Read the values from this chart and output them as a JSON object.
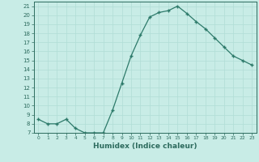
{
  "x": [
    0,
    1,
    2,
    3,
    4,
    5,
    6,
    7,
    8,
    9,
    10,
    11,
    12,
    13,
    14,
    15,
    16,
    17,
    18,
    19,
    20,
    21,
    22,
    23
  ],
  "y": [
    8.5,
    8.0,
    8.0,
    8.5,
    7.5,
    7.0,
    7.0,
    7.0,
    9.5,
    12.5,
    15.5,
    17.8,
    19.8,
    20.3,
    20.5,
    21.0,
    20.2,
    19.3,
    18.5,
    17.5,
    16.5,
    15.5,
    15.0,
    14.5
  ],
  "xlabel": "Humidex (Indice chaleur)",
  "xlim": [
    -0.5,
    23.5
  ],
  "ylim": [
    7,
    21.5
  ],
  "yticks": [
    7,
    8,
    9,
    10,
    11,
    12,
    13,
    14,
    15,
    16,
    17,
    18,
    19,
    20,
    21
  ],
  "xticks": [
    0,
    1,
    2,
    3,
    4,
    5,
    6,
    7,
    8,
    9,
    10,
    11,
    12,
    13,
    14,
    15,
    16,
    17,
    18,
    19,
    20,
    21,
    22,
    23
  ],
  "line_color": "#2d7a6a",
  "marker": "+",
  "markersize": 3.5,
  "linewidth": 0.9,
  "bg_color": "#c8ece6",
  "grid_color": "#b0ddd6",
  "label_color": "#2d6b5e",
  "tick_color": "#2d6b5e",
  "axis_color": "#2d6b5e",
  "xlabel_fontsize": 6.5,
  "xlabel_fontweight": "bold",
  "ytick_fontsize": 5.0,
  "xtick_fontsize": 4.3
}
